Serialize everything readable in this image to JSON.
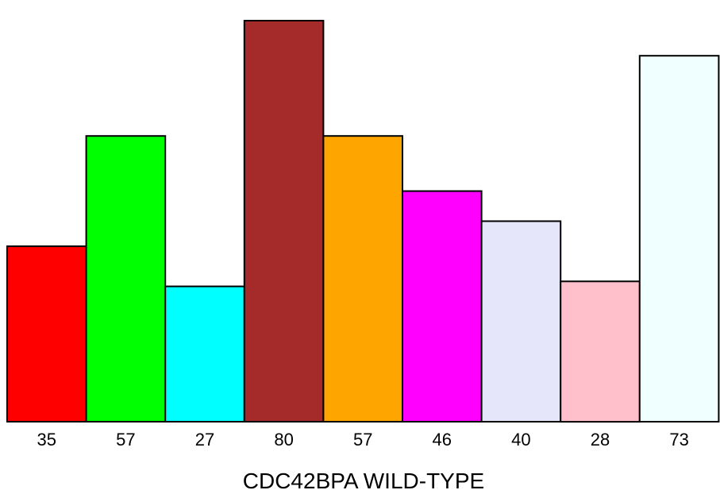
{
  "chart_data": {
    "type": "bar",
    "categories": [
      "35",
      "57",
      "27",
      "80",
      "57",
      "46",
      "40",
      "28",
      "73"
    ],
    "values": [
      35,
      57,
      27,
      80,
      57,
      46,
      40,
      28,
      73
    ],
    "colors": [
      "#ff0000",
      "#00ff00",
      "#00ffff",
      "#a52a2a",
      "#ffa500",
      "#ff00ff",
      "#e6e6fa",
      "#ffc0cb",
      "#f0ffff"
    ],
    "title": "",
    "xlabel": "CDC42BPA WILD-TYPE",
    "ylabel": "",
    "ylim": [
      0,
      80
    ],
    "grid": false,
    "legend": "none"
  }
}
